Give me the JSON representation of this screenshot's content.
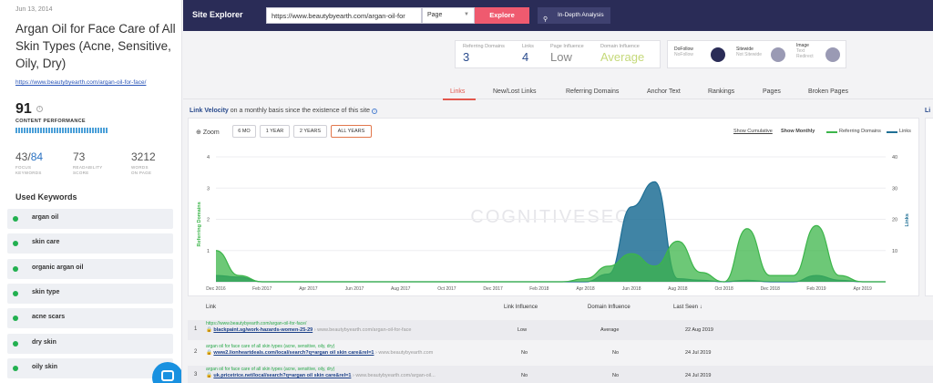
{
  "page": {
    "date": "Jun 13, 2014",
    "title": "Argan Oil for Face Care of All Skin Types (Acne, Sensitive, Oily, Dry)",
    "url": "https://www.beautybyearth.com/argan-oil-for-face/",
    "score": "91",
    "score_info": "i",
    "content_performance_label": "CONTENT PERFORMANCE",
    "content_performance_level": 1.0,
    "focus_keywords_found": "43",
    "focus_keywords_sep": "/",
    "focus_keywords_total": "84",
    "focus_keywords_label_1": "FOCUS",
    "focus_keywords_label_2": "KEYWORDS",
    "readability": "73",
    "readability_label_1": "READABILITY",
    "readability_label_2": "SCORE",
    "words": "3212",
    "words_label_1": "WORDS",
    "words_label_2": "ON PAGE",
    "used_keywords_title": "Used Keywords",
    "keywords": [
      "argan oil",
      "skin care",
      "organic argan oil",
      "skin type",
      "acne scars",
      "dry skin",
      "oily skin"
    ],
    "keyword_status_color": "#22b050"
  },
  "header": {
    "brand": "Site Explorer",
    "url_value": "https://www.beautybyearth.com/argan-oil-for",
    "mode_value": "Page",
    "mode_chevron": "chevron-down-icon",
    "explore_label": "Explore",
    "in_depth_label": "In-Depth Analysis",
    "in_depth_icon": "analysis-icon",
    "explore_color": "#ef5a6f"
  },
  "metrics": [
    {
      "label": "Referring Domains",
      "value": "3",
      "color": "#2a4b8d"
    },
    {
      "label": "Links",
      "value": "4",
      "color": "#2a4b8d"
    },
    {
      "label": "Page Influence",
      "value": "Low",
      "color": "#888888"
    },
    {
      "label": "Domain Influence",
      "value": "Average",
      "color": "#c5d97a"
    }
  ],
  "link_types": [
    {
      "label": "DoFollow",
      "sub": "NoFollow",
      "color": "#2a2c57"
    },
    {
      "label": "Sitewide",
      "sub": "Not Sitewide",
      "color": "#9a9ab4"
    },
    {
      "label": "Image",
      "sub": "Text",
      "sub2": "Redirect",
      "color": "#9a9ab4"
    }
  ],
  "tabs": [
    "Links",
    "New/Lost Links",
    "Referring Domains",
    "Anchor Text",
    "Rankings",
    "Pages",
    "Broken Pages"
  ],
  "active_tab": "Links",
  "velocity": {
    "title": "Link Velocity",
    "subtitle": "on a monthly basis since the existence of this site",
    "info": "i",
    "right_stub_title": "Li"
  },
  "chart_controls": {
    "zoom_label": "Zoom",
    "zoom_icon": "zoom-icon",
    "buttons": [
      "6 MO",
      "1 YEAR",
      "2 YEARS",
      "ALL YEARS"
    ],
    "selected": "ALL YEARS",
    "show_cumulative": "Show Cumulative",
    "show_monthly": "Show Monthly"
  },
  "chart_data": {
    "type": "area",
    "watermark": "COGNITIVESEO",
    "x": [
      "Dec 2016",
      "Feb 2017",
      "Apr 2017",
      "Jun 2017",
      "Aug 2017",
      "Oct 2017",
      "Dec 2017",
      "Feb 2018",
      "Apr 2018",
      "Jun 2018",
      "Aug 2018",
      "Oct 2018",
      "Dec 2018",
      "Feb 2019",
      "Apr 2019"
    ],
    "x_range": [
      0,
      29
    ],
    "y_left": {
      "label": "Referring Domains",
      "ticks": [
        "1",
        "2",
        "3",
        "4"
      ],
      "range": [
        0,
        4
      ]
    },
    "y_right": {
      "label": "Links",
      "ticks": [
        "10",
        "20",
        "30",
        "40"
      ],
      "range": [
        0,
        40
      ]
    },
    "legend_position": "top-right",
    "series": [
      {
        "name": "Referring Domains",
        "axis": "left",
        "color": "#3cb54a",
        "points": [
          [
            0,
            1
          ],
          [
            1,
            0.2
          ],
          [
            2,
            0
          ],
          [
            15,
            0
          ],
          [
            16,
            0.1
          ],
          [
            17,
            0.5
          ],
          [
            18,
            0.9
          ],
          [
            19,
            0.5
          ],
          [
            20,
            1.3
          ],
          [
            21,
            0.3
          ],
          [
            22,
            0
          ],
          [
            23,
            1.7
          ],
          [
            24,
            0.2
          ],
          [
            25,
            0.2
          ],
          [
            26,
            1.8
          ],
          [
            27,
            0.2
          ],
          [
            28,
            0
          ],
          [
            29,
            0
          ]
        ]
      },
      {
        "name": "Links",
        "axis": "right",
        "color": "#1f6f95",
        "points": [
          [
            0,
            2
          ],
          [
            1,
            1.5
          ],
          [
            2,
            0
          ],
          [
            16,
            0
          ],
          [
            17,
            2.5
          ],
          [
            18,
            24
          ],
          [
            19,
            32
          ],
          [
            20,
            1
          ],
          [
            21,
            0.5
          ],
          [
            22,
            0
          ],
          [
            23,
            0.5
          ],
          [
            24,
            0
          ],
          [
            25,
            0
          ],
          [
            26,
            2
          ],
          [
            27,
            0.5
          ],
          [
            28,
            0
          ],
          [
            29,
            0
          ]
        ]
      }
    ]
  },
  "table": {
    "headers": [
      "Link",
      "Link Influence",
      "Domain Influence",
      "Last Seen"
    ],
    "sort_icon": "arrow-down-icon",
    "rows": [
      {
        "num": "1",
        "title": "https://www.beautybyearth.com/argan-oil-for-face/",
        "link": "blackpaint.sg/work-hazards-women-25-29",
        "target": "www.beautybyearth.com/argan-oil-for-face",
        "link_influence": "Low",
        "domain_influence": "Average",
        "last_seen": "22 Aug 2019"
      },
      {
        "num": "2",
        "title": "argan oil for face care of all skin types (acne, sensitive, oily, dry)",
        "link": "www2.lionheartdeals.com/local/search?q=argan oil skin care&rel=1",
        "target": "www.beautybyearth.com",
        "link_influence": "No",
        "domain_influence": "No",
        "last_seen": "24 Jul 2019"
      },
      {
        "num": "3",
        "title": "argan oil for face care of all skin types (acne, sensitive, oily, dry)",
        "link": "uk.pricetrice.net/local/search?q=argan oil skin care&rel=1",
        "target": "www.beautybyearth.com/argan-oil...",
        "link_influence": "No",
        "domain_influence": "No",
        "last_seen": "24 Jul 2019"
      }
    ]
  }
}
